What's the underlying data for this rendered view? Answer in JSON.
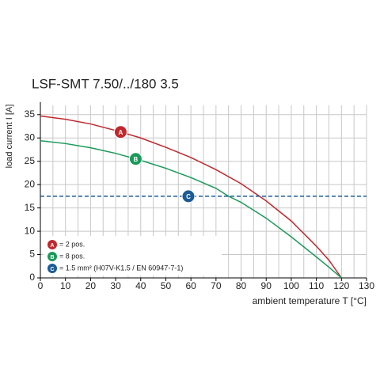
{
  "chart_data": {
    "type": "line",
    "title": "LSF-SMT 7.50/../180 3.5",
    "x_label": "ambient temperature T [°C]",
    "y_label": "load current I [A]",
    "xlim": [
      0,
      130
    ],
    "ylim": [
      0,
      37
    ],
    "xticks": [
      0,
      10,
      20,
      30,
      40,
      50,
      60,
      70,
      80,
      90,
      100,
      110,
      120,
      130
    ],
    "xminor": [
      5,
      15,
      25,
      35,
      45,
      55,
      65,
      75,
      85,
      95,
      105,
      115,
      125
    ],
    "yticks": [
      0,
      5,
      10,
      15,
      20,
      25,
      30,
      35
    ],
    "grid": true,
    "series": [
      {
        "name": "= 2 pos.",
        "marker": "A",
        "color": "#c0282d",
        "dashed": false,
        "x": [
          0,
          10,
          20,
          30,
          40,
          50,
          60,
          70,
          80,
          90,
          100,
          110,
          115,
          120
        ],
        "values": [
          34.7,
          34.0,
          33.0,
          31.6,
          30.0,
          28.0,
          25.8,
          23.2,
          20.2,
          16.5,
          12.2,
          6.8,
          3.8,
          0
        ]
      },
      {
        "name": "= 8 pos.",
        "marker": "B",
        "color": "#1a9a5a",
        "dashed": false,
        "x": [
          0,
          10,
          20,
          30,
          40,
          50,
          60,
          70,
          75,
          80,
          90,
          100,
          110,
          115,
          120
        ],
        "values": [
          29.4,
          28.8,
          27.9,
          26.7,
          25.2,
          23.5,
          21.5,
          19.2,
          17.5,
          16.2,
          12.8,
          8.8,
          4.5,
          2.3,
          0
        ]
      },
      {
        "name": "= 1.5 mm² (H07V-K1.5 / EN 60947-7-1)",
        "marker": "C",
        "color": "#1c5c96",
        "dashed": true,
        "x": [
          0,
          130
        ],
        "values": [
          17.5,
          17.5
        ]
      }
    ]
  }
}
